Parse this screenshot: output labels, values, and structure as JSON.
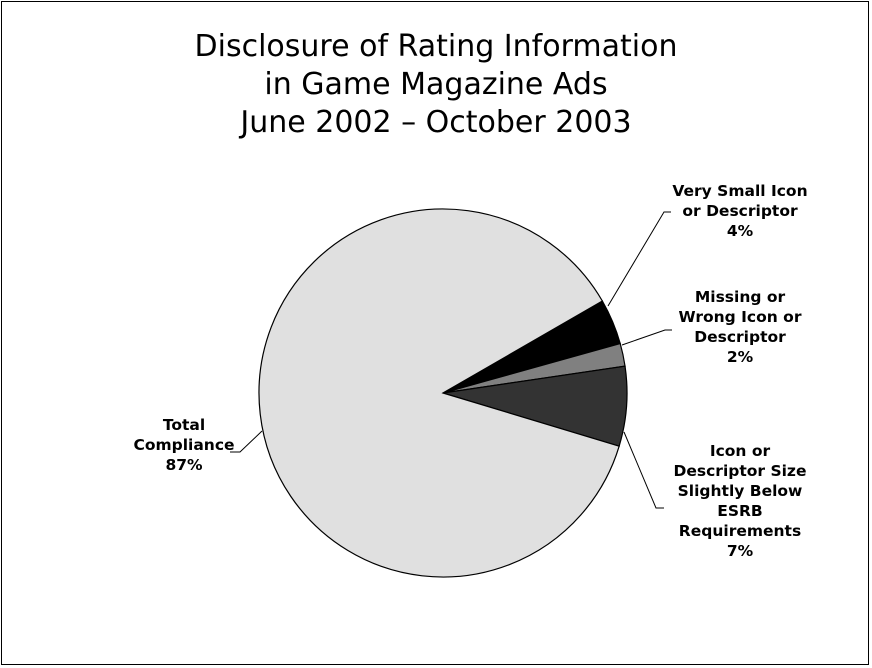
{
  "chart_data": {
    "type": "pie",
    "title_lines": [
      "Disclosure of Rating Information",
      "in Game Magazine Ads",
      "June 2002 – October 2003"
    ],
    "start_angle_deg": 30,
    "slices": [
      {
        "label_lines": [
          "Very Small Icon",
          "or Descriptor",
          "4%"
        ],
        "value": 4,
        "color": "#000000"
      },
      {
        "label_lines": [
          "Missing or",
          "Wrong Icon or",
          "Descriptor",
          "2%"
        ],
        "value": 2,
        "color": "#808080"
      },
      {
        "label_lines": [
          "Icon or",
          "Descriptor Size",
          "Slightly Below",
          "ESRB",
          "Requirements",
          "7%"
        ],
        "value": 7,
        "color": "#333333"
      },
      {
        "label_lines": [
          "Total",
          "Compliance",
          "87%"
        ],
        "value": 87,
        "color": "#e0e0e0"
      }
    ]
  }
}
